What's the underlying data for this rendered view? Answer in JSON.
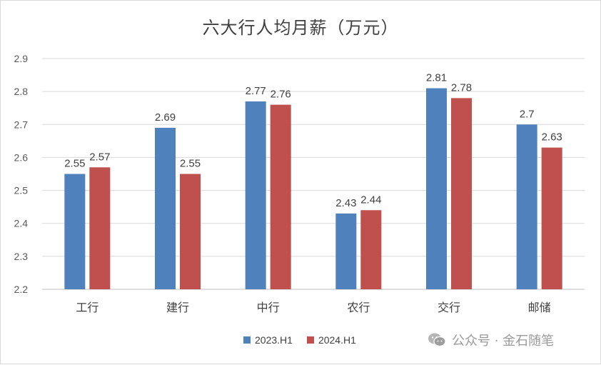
{
  "chart_data": {
    "type": "bar",
    "title": "六大行人均月薪（万元）",
    "categories": [
      "工行",
      "建行",
      "中行",
      "农行",
      "交行",
      "邮储"
    ],
    "series": [
      {
        "name": "2023.H1",
        "values": [
          2.55,
          2.69,
          2.77,
          2.43,
          2.81,
          2.7
        ],
        "labels": [
          "2.55",
          "2.69",
          "2.77",
          "2.43",
          "2.81",
          "2.7"
        ],
        "color": "#4f81bd"
      },
      {
        "name": "2024.H1",
        "values": [
          2.57,
          2.55,
          2.76,
          2.44,
          2.78,
          2.63
        ],
        "labels": [
          "2.57",
          "2.55",
          "2.76",
          "2.44",
          "2.78",
          "2.63"
        ],
        "color": "#c0504d"
      }
    ],
    "ylim": [
      2.2,
      2.9
    ],
    "yticks": [
      2.2,
      2.3,
      2.4,
      2.5,
      2.6,
      2.7,
      2.8,
      2.9
    ],
    "ytick_labels": [
      "2.2",
      "2.3",
      "2.4",
      "2.5",
      "2.6",
      "2.7",
      "2.8",
      "2.9"
    ],
    "grid": true,
    "legend_position": "bottom",
    "xlabel": "",
    "ylabel": ""
  },
  "watermark": {
    "text": "公众号 · 金石随笔",
    "icon": "wechat-icon"
  }
}
